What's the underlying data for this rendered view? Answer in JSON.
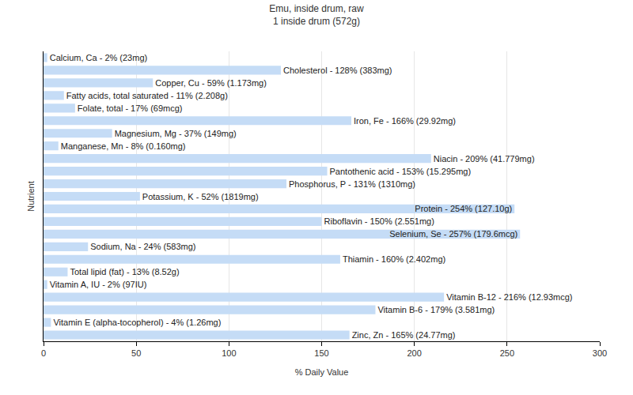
{
  "chart_data": {
    "type": "bar",
    "orientation": "horizontal",
    "title": "Emu, inside drum, raw",
    "subtitle": "1 inside drum (572g)",
    "x_label": "% Daily Value",
    "y_label": "Nutrient",
    "categories": [
      "Calcium, Ca - 2% (23mg)",
      "Cholesterol - 128% (383mg)",
      "Copper, Cu - 59% (1.173mg)",
      "Fatty acids, total saturated - 11% (2.208g)",
      "Folate, total - 17% (69mcg)",
      "Iron, Fe - 166% (29.92mg)",
      "Magnesium, Mg - 37% (149mg)",
      "Manganese, Mn - 8% (0.160mg)",
      "Niacin - 209% (41.779mg)",
      "Pantothenic acid - 153% (15.295mg)",
      "Phosphorus, P - 131% (1310mg)",
      "Potassium, K - 52% (1819mg)",
      "Protein - 254% (127.10g)",
      "Riboflavin - 150% (2.551mg)",
      "Selenium, Se - 257% (179.6mcg)",
      "Sodium, Na - 24% (583mg)",
      "Thiamin - 160% (2.402mg)",
      "Total lipid (fat) - 13% (8.52g)",
      "Vitamin A, IU - 2% (97IU)",
      "Vitamin B-12 - 216% (12.93mcg)",
      "Vitamin B-6 - 179% (3.581mg)",
      "Vitamin E (alpha-tocopherol) - 4% (1.26mg)",
      "Zinc, Zn - 165% (24.77mg)"
    ],
    "values": [
      2,
      128,
      59,
      11,
      17,
      166,
      37,
      8,
      209,
      153,
      131,
      52,
      254,
      150,
      257,
      24,
      160,
      13,
      2,
      216,
      179,
      4,
      165
    ],
    "color": "#c5dcf6",
    "xlim": [
      0,
      300
    ],
    "xticks": [
      0,
      50,
      100,
      150,
      200,
      250,
      300
    ],
    "grid": true,
    "tick_labels": "x"
  }
}
